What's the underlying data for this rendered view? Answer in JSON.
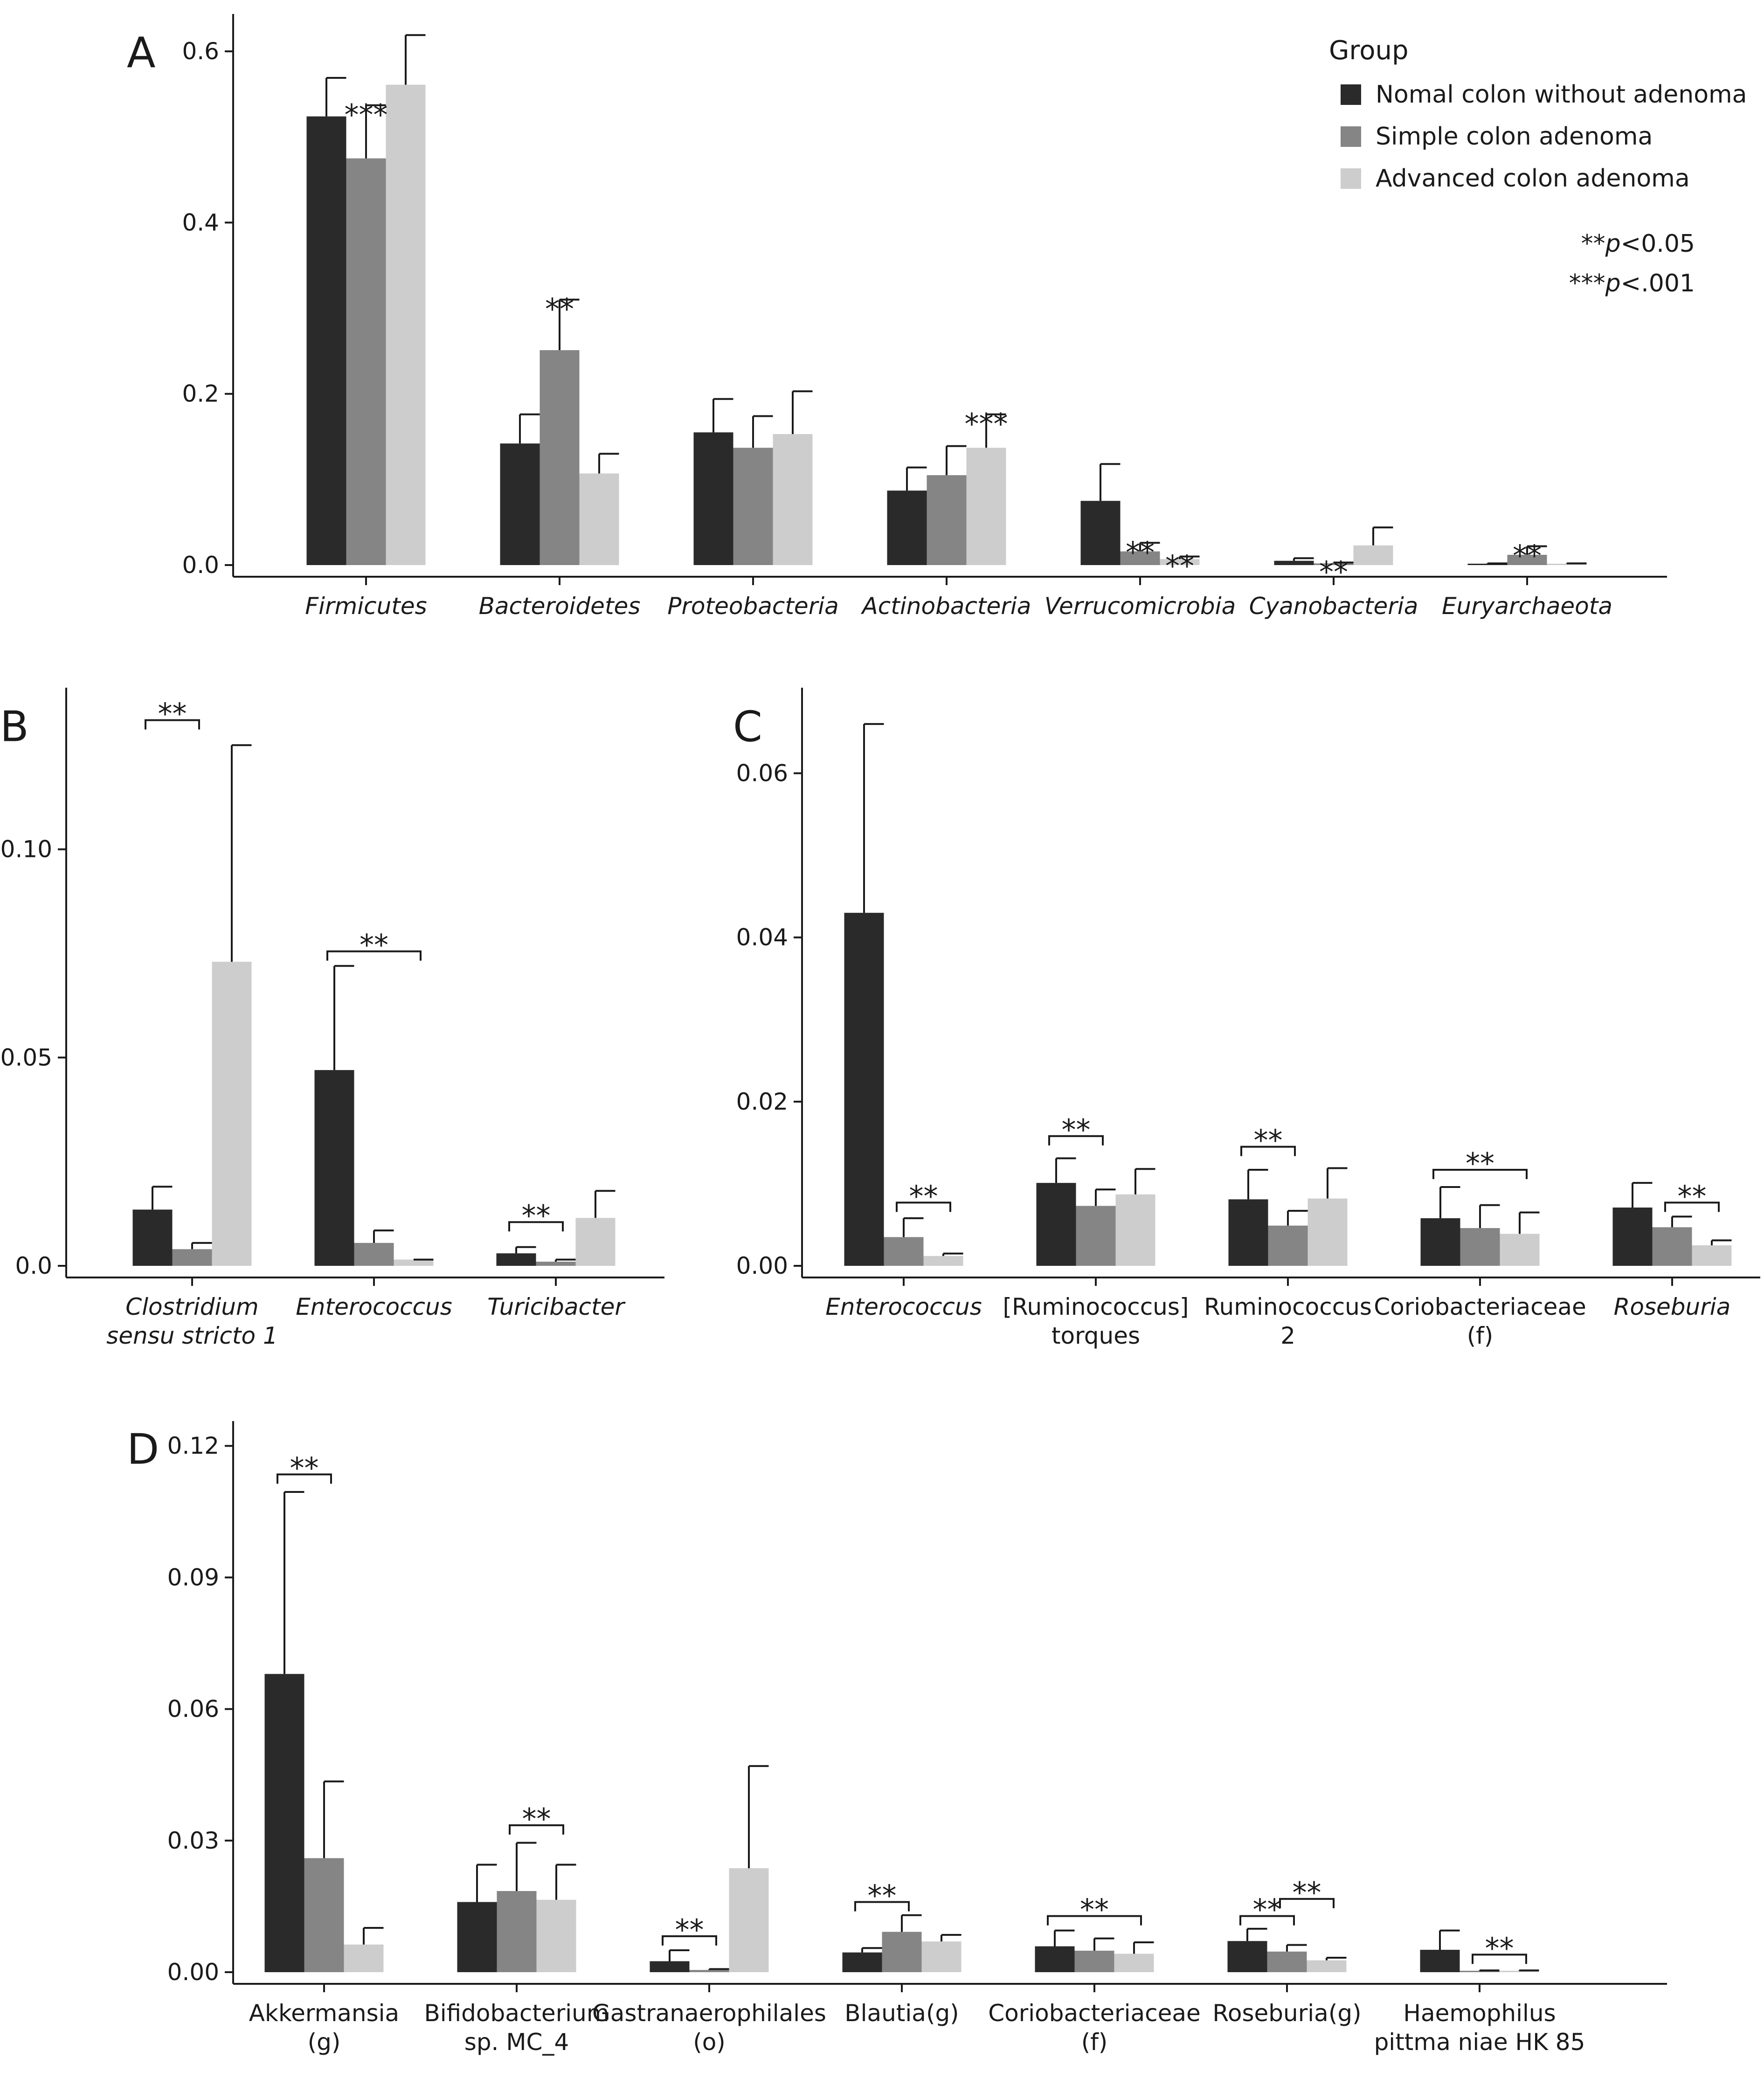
{
  "chart_data": {
    "type": "bar",
    "legend": {
      "title": "Group",
      "position": "top-right",
      "groups": [
        {
          "name": "Nomal colon without adenoma",
          "color": "#2a2a2a"
        },
        {
          "name": "Simple colon adenoma",
          "color": "#858585"
        },
        {
          "name": "Advanced colon adenoma",
          "color": "#cdcdcd"
        }
      ]
    },
    "notes": [
      {
        "stars": "**",
        "text": "p<0.05"
      },
      {
        "stars": "***",
        "text": "p<.001"
      }
    ],
    "panels": [
      {
        "id": "A",
        "title": "A",
        "ylim": [
          0,
          0.63
        ],
        "ticks": [
          {
            "value": 0.0,
            "label": "0.0"
          },
          {
            "value": 0.2,
            "label": "0.2"
          },
          {
            "value": 0.4,
            "label": "0.4"
          },
          {
            "value": 0.6,
            "label": "0.6"
          }
        ],
        "categories": [
          {
            "label": [
              "Firmicutes"
            ],
            "italic": true,
            "values": [
              0.524,
              0.475,
              0.561
            ],
            "errors": [
              0.569,
              0.537,
              0.619
            ],
            "annotations": [
              {
                "text": "***",
                "anchor": 1,
                "y": 0.537
              }
            ]
          },
          {
            "label": [
              "Bacteroidetes"
            ],
            "italic": true,
            "values": [
              0.142,
              0.251,
              0.107
            ],
            "errors": [
              0.176,
              0.31,
              0.13
            ],
            "annotations": [
              {
                "text": "**",
                "anchor": 1,
                "y": 0.31
              }
            ]
          },
          {
            "label": [
              "Proteobacteria"
            ],
            "italic": true,
            "values": [
              0.155,
              0.137,
              0.153
            ],
            "errors": [
              0.194,
              0.174,
              0.203
            ],
            "annotations": []
          },
          {
            "label": [
              "Actinobacteria"
            ],
            "italic": true,
            "values": [
              0.087,
              0.105,
              0.137
            ],
            "errors": [
              0.114,
              0.139,
              0.176
            ],
            "annotations": [
              {
                "text": "***",
                "anchor": 2,
                "y": 0.176
              }
            ]
          },
          {
            "label": [
              "Verrucomicrobia"
            ],
            "italic": true,
            "values": [
              0.075,
              0.016,
              0.007
            ],
            "errors": [
              0.118,
              0.026,
              0.01
            ],
            "annotations": [
              {
                "text": "**",
                "anchor": 1,
                "y": 0.026
              },
              {
                "text": "**",
                "anchor": 2,
                "y": 0.01
              }
            ]
          },
          {
            "label": [
              "Cyanobacteria"
            ],
            "italic": true,
            "values": [
              0.005,
              0.002,
              0.023
            ],
            "errors": [
              0.008,
              0.003,
              0.044
            ],
            "annotations": [
              {
                "text": "**",
                "anchor": 1,
                "y": 0.003
              }
            ]
          },
          {
            "label": [
              "Euryarchaeota"
            ],
            "italic": true,
            "values": [
              0.001,
              0.012,
              0.001
            ],
            "errors": [
              0.002,
              0.022,
              0.002
            ],
            "annotations": [
              {
                "text": "**",
                "anchor": 1,
                "y": 0.022
              }
            ]
          }
        ]
      },
      {
        "id": "B",
        "title": "B",
        "ylim": [
          0,
          0.136
        ],
        "ticks": [
          {
            "value": 0.0,
            "label": "0.0"
          },
          {
            "value": 0.05,
            "label": "0.05"
          },
          {
            "value": 0.1,
            "label": "0.10"
          }
        ],
        "categories": [
          {
            "label": [
              "Clostridium",
              "sensu stricto 1"
            ],
            "italic": true,
            "values": [
              0.0135,
              0.004,
              0.073
            ],
            "errors": [
              0.019,
              0.0055,
              0.125
            ],
            "annotations": [
              {
                "text": "**",
                "from": 0,
                "to": 1,
                "y": 0.131
              }
            ]
          },
          {
            "label": [
              "Enterococcus"
            ],
            "italic": true,
            "values": [
              0.047,
              0.0055,
              0.0015
            ],
            "errors": [
              0.072,
              0.0085,
              0.0015
            ],
            "annotations": [
              {
                "text": "**",
                "from": 0,
                "to": 2,
                "y": 0.0755
              }
            ]
          },
          {
            "label": [
              "Turicibacter"
            ],
            "italic": true,
            "values": [
              0.003,
              0.001,
              0.0115
            ],
            "errors": [
              0.0045,
              0.0015,
              0.018
            ],
            "annotations": [
              {
                "text": "**",
                "from": 0,
                "to": 1,
                "y": 0.0105
              }
            ]
          }
        ]
      },
      {
        "id": "C",
        "title": "C",
        "ylim": [
          0,
          0.069
        ],
        "ticks": [
          {
            "value": 0.0,
            "label": "0.00"
          },
          {
            "value": 0.02,
            "label": "0.02"
          },
          {
            "value": 0.04,
            "label": "0.04"
          },
          {
            "value": 0.06,
            "label": "0.06"
          }
        ],
        "categories": [
          {
            "label": [
              "Enterococcus"
            ],
            "italic": true,
            "values": [
              0.043,
              0.0035,
              0.0012
            ],
            "errors": [
              0.066,
              0.0058,
              0.0015
            ],
            "annotations": [
              {
                "text": "**",
                "from": 1,
                "to": 2,
                "y": 0.0077
              }
            ]
          },
          {
            "label": [
              "[Ruminococcus]",
              "torques"
            ],
            "italic": false,
            "values": [
              0.0101,
              0.0073,
              0.0087
            ],
            "errors": [
              0.0131,
              0.0093,
              0.0118
            ],
            "annotations": [
              {
                "text": "**",
                "from": 0,
                "to": 1,
                "y": 0.0158
              }
            ]
          },
          {
            "label": [
              "Ruminococcus",
              "2"
            ],
            "italic": false,
            "values": [
              0.0081,
              0.0049,
              0.0082
            ],
            "errors": [
              0.0117,
              0.0067,
              0.0119
            ],
            "annotations": [
              {
                "text": "**",
                "from": 0,
                "to": 1,
                "y": 0.0145
              }
            ]
          },
          {
            "label": [
              "Coriobacteriaceae",
              "(f)"
            ],
            "italic": false,
            "values": [
              0.0058,
              0.0046,
              0.0039
            ],
            "errors": [
              0.0096,
              0.0074,
              0.0065
            ],
            "annotations": [
              {
                "text": "**",
                "from": 0,
                "to": 2,
                "y": 0.0117
              }
            ]
          },
          {
            "label": [
              "Roseburia"
            ],
            "italic": true,
            "values": [
              0.0071,
              0.0047,
              0.0025
            ],
            "errors": [
              0.0101,
              0.006,
              0.0031
            ],
            "annotations": [
              {
                "text": "**",
                "from": 1,
                "to": 2,
                "y": 0.0077
              }
            ]
          }
        ]
      },
      {
        "id": "D",
        "title": "D",
        "ylim": [
          0,
          0.123
        ],
        "ticks": [
          {
            "value": 0.0,
            "label": "0.00"
          },
          {
            "value": 0.03,
            "label": "0.03"
          },
          {
            "value": 0.06,
            "label": "0.06"
          },
          {
            "value": 0.09,
            "label": "0.09"
          },
          {
            "value": 0.12,
            "label": "0.12"
          }
        ],
        "categories": [
          {
            "label": [
              "Akkermansia",
              "(g)"
            ],
            "italic": false,
            "values": [
              0.068,
              0.026,
              0.0063
            ],
            "errors": [
              0.1095,
              0.0435,
              0.0101
            ],
            "annotations": [
              {
                "text": "**",
                "from": 0,
                "to": 1,
                "y": 0.1135
              }
            ]
          },
          {
            "label": [
              "Bifidobacterium",
              "sp. MC_4"
            ],
            "italic": false,
            "values": [
              0.016,
              0.0185,
              0.0165
            ],
            "errors": [
              0.0245,
              0.0295,
              0.0245
            ],
            "annotations": [
              {
                "text": "**",
                "from": 1,
                "to": 2,
                "y": 0.0335
              }
            ]
          },
          {
            "label": [
              "Gastranaerophilales",
              "(o)"
            ],
            "italic": false,
            "values": [
              0.0025,
              0.0005,
              0.0237
            ],
            "errors": [
              0.005,
              0.0007,
              0.047
            ],
            "annotations": [
              {
                "text": "**",
                "from": 0,
                "to": 1,
                "y": 0.0082
              }
            ]
          },
          {
            "label": [
              "Blautia(g)"
            ],
            "italic": false,
            "values": [
              0.0045,
              0.0092,
              0.007
            ],
            "errors": [
              0.0055,
              0.013,
              0.0085
            ],
            "annotations": [
              {
                "text": "**",
                "from": 0,
                "to": 1,
                "y": 0.016
              }
            ]
          },
          {
            "label": [
              "Coriobacteriaceae",
              "(f)"
            ],
            "italic": false,
            "values": [
              0.0059,
              0.0049,
              0.0042
            ],
            "errors": [
              0.0095,
              0.0077,
              0.0068
            ],
            "annotations": [
              {
                "text": "**",
                "from": 0,
                "to": 2,
                "y": 0.0128
              }
            ]
          },
          {
            "label": [
              "Roseburia(g)"
            ],
            "italic": false,
            "values": [
              0.0071,
              0.0047,
              0.0027
            ],
            "errors": [
              0.0099,
              0.0062,
              0.0033
            ],
            "annotations": [
              {
                "text": "**",
                "from": 0,
                "to": 1,
                "y": 0.0128
              },
              {
                "text": "**",
                "from": 1,
                "to": 2,
                "y": 0.0167
              }
            ]
          },
          {
            "label": [
              "Haemophilus",
              "pittma niae HK 85"
            ],
            "italic": false,
            "values": [
              0.0051,
              0.0003,
              0.0003
            ],
            "errors": [
              0.0095,
              0.0004,
              0.0004
            ],
            "annotations": [
              {
                "text": "**",
                "from": 1,
                "to": 2,
                "y": 0.004
              }
            ]
          }
        ]
      }
    ]
  }
}
